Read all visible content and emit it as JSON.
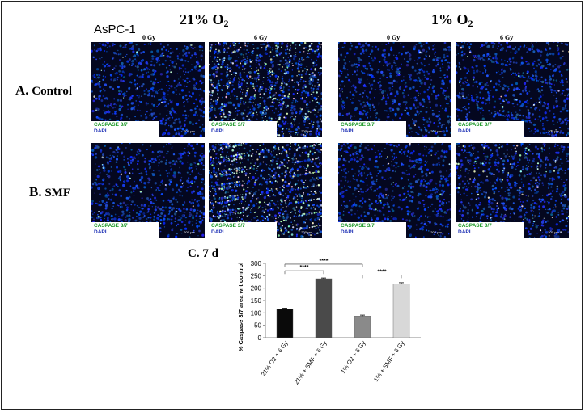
{
  "header": {
    "cell_line": "AsPC-1",
    "cond1_prefix": "21% O",
    "cond1_sub": "2",
    "cond2_prefix": "1% O",
    "cond2_sub": "2"
  },
  "columns": {
    "c1": "0 Gy",
    "c2": "6 Gy",
    "c3": "0 Gy",
    "c4": "6 Gy"
  },
  "rows": {
    "a_letter": "A.",
    "a_name": "Control",
    "b_letter": "B.",
    "b_name": "SMF",
    "c_label": "C. 7 d"
  },
  "panel_legend": {
    "caspase": "CASPASE 3/7",
    "dapi": "DAPI",
    "scale": "200 μm"
  },
  "colors": {
    "caspase_green": "#1f9a2a",
    "dapi_blue": "#1c2fb5"
  },
  "chart_data": {
    "type": "bar",
    "ylabel": "% Caspase 3/7 area wrt control",
    "categories": [
      "21% O2 + 6 Gy",
      "21% + SMF + 6 Gy",
      "1% O2 + 6 Gy",
      "1% + SMF + 6 Gy"
    ],
    "values": [
      115,
      238,
      87,
      217
    ],
    "errors": [
      4,
      3,
      4,
      5
    ],
    "bar_colors": [
      "#0a0a0a",
      "#4a4a4a",
      "#8a8a8a",
      "#d8d8d8"
    ],
    "ylim": [
      0,
      300
    ],
    "yticks": [
      0,
      50,
      100,
      150,
      200,
      250,
      300
    ],
    "significance": [
      {
        "from": 0,
        "to": 1,
        "label": "****",
        "y": 270
      },
      {
        "from": 0,
        "to": 2,
        "label": "****",
        "y": 297
      },
      {
        "from": 2,
        "to": 3,
        "label": "****",
        "y": 253
      }
    ],
    "grid": false
  }
}
